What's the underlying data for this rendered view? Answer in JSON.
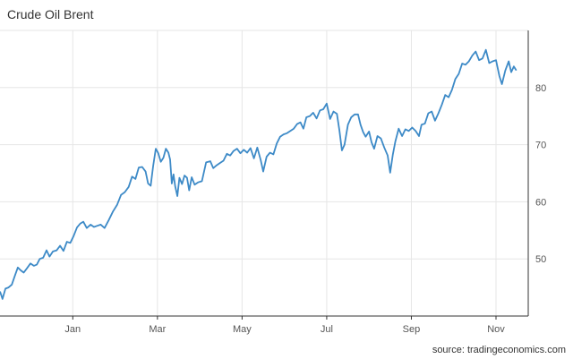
{
  "header": {
    "title": "Crude Oil Brent"
  },
  "footer": {
    "source": "source: tradingeconomics.com"
  },
  "colors": {
    "line": "#3d8ac7",
    "grid": "#e6e6e6",
    "axis": "#333333"
  },
  "chart_data": {
    "type": "line",
    "title": "Crude Oil Brent",
    "xlabel": "",
    "ylabel": "",
    "grid": true,
    "legend": "none",
    "x_ticks": [
      {
        "label": "Jan",
        "x": 2.0
      },
      {
        "label": "Mar",
        "x": 4.0
      },
      {
        "label": "May",
        "x": 6.0
      },
      {
        "label": "Jul",
        "x": 8.0
      },
      {
        "label": "Sep",
        "x": 10.0
      },
      {
        "label": "Nov",
        "x": 12.0
      }
    ],
    "y_ticks": [
      50,
      60,
      70,
      80
    ],
    "xlim": [
      0.28,
      12.55
    ],
    "ylim": [
      40,
      90
    ],
    "series": [
      {
        "points": [
          [
            0.28,
            44.3
          ],
          [
            0.34,
            43.0
          ],
          [
            0.41,
            44.8
          ],
          [
            0.48,
            45.0
          ],
          [
            0.56,
            45.5
          ],
          [
            0.63,
            47.0
          ],
          [
            0.7,
            48.5
          ],
          [
            0.77,
            48.0
          ],
          [
            0.84,
            47.6
          ],
          [
            0.92,
            48.4
          ],
          [
            1.0,
            49.2
          ],
          [
            1.08,
            48.8
          ],
          [
            1.15,
            49.0
          ],
          [
            1.22,
            50.0
          ],
          [
            1.3,
            50.2
          ],
          [
            1.38,
            51.5
          ],
          [
            1.45,
            50.4
          ],
          [
            1.53,
            51.3
          ],
          [
            1.62,
            51.5
          ],
          [
            1.7,
            52.3
          ],
          [
            1.78,
            51.4
          ],
          [
            1.86,
            53.0
          ],
          [
            1.94,
            52.8
          ],
          [
            2.02,
            54.0
          ],
          [
            2.1,
            55.5
          ],
          [
            2.18,
            56.2
          ],
          [
            2.25,
            56.5
          ],
          [
            2.33,
            55.4
          ],
          [
            2.42,
            56.0
          ],
          [
            2.5,
            55.6
          ],
          [
            2.58,
            55.8
          ],
          [
            2.66,
            56.0
          ],
          [
            2.75,
            55.4
          ],
          [
            2.85,
            56.8
          ],
          [
            2.95,
            58.3
          ],
          [
            3.05,
            59.5
          ],
          [
            3.14,
            61.2
          ],
          [
            3.23,
            61.7
          ],
          [
            3.32,
            62.6
          ],
          [
            3.4,
            64.4
          ],
          [
            3.48,
            64.0
          ],
          [
            3.56,
            66.0
          ],
          [
            3.64,
            66.1
          ],
          [
            3.72,
            65.3
          ],
          [
            3.78,
            63.2
          ],
          [
            3.84,
            62.8
          ],
          [
            3.9,
            66.3
          ],
          [
            3.96,
            69.3
          ],
          [
            4.02,
            68.5
          ],
          [
            4.08,
            67.0
          ],
          [
            4.14,
            67.7
          ],
          [
            4.2,
            69.3
          ],
          [
            4.26,
            68.6
          ],
          [
            4.3,
            67.4
          ],
          [
            4.34,
            63.2
          ],
          [
            4.38,
            64.8
          ],
          [
            4.42,
            62.7
          ],
          [
            4.47,
            61.0
          ],
          [
            4.52,
            64.2
          ],
          [
            4.58,
            63.1
          ],
          [
            4.64,
            64.6
          ],
          [
            4.7,
            64.2
          ],
          [
            4.75,
            62.0
          ],
          [
            4.81,
            64.3
          ],
          [
            4.88,
            63.0
          ],
          [
            4.96,
            63.4
          ],
          [
            5.05,
            63.6
          ],
          [
            5.15,
            66.9
          ],
          [
            5.25,
            67.1
          ],
          [
            5.32,
            65.9
          ],
          [
            5.4,
            66.4
          ],
          [
            5.48,
            66.8
          ],
          [
            5.56,
            67.2
          ],
          [
            5.64,
            68.4
          ],
          [
            5.72,
            68.1
          ],
          [
            5.8,
            68.9
          ],
          [
            5.88,
            69.3
          ],
          [
            5.96,
            68.5
          ],
          [
            6.04,
            69.1
          ],
          [
            6.12,
            68.6
          ],
          [
            6.2,
            69.4
          ],
          [
            6.28,
            67.6
          ],
          [
            6.36,
            69.5
          ],
          [
            6.44,
            67.3
          ],
          [
            6.5,
            65.3
          ],
          [
            6.58,
            67.9
          ],
          [
            6.66,
            68.6
          ],
          [
            6.74,
            68.3
          ],
          [
            6.82,
            70.2
          ],
          [
            6.9,
            71.4
          ],
          [
            6.98,
            71.8
          ],
          [
            7.06,
            72.0
          ],
          [
            7.14,
            72.4
          ],
          [
            7.22,
            72.8
          ],
          [
            7.3,
            73.6
          ],
          [
            7.38,
            73.9
          ],
          [
            7.45,
            72.8
          ],
          [
            7.52,
            74.8
          ],
          [
            7.6,
            75.0
          ],
          [
            7.68,
            75.6
          ],
          [
            7.76,
            74.6
          ],
          [
            7.84,
            76.0
          ],
          [
            7.92,
            76.2
          ],
          [
            8.0,
            77.2
          ],
          [
            8.08,
            74.5
          ],
          [
            8.16,
            75.8
          ],
          [
            8.24,
            75.4
          ],
          [
            8.3,
            72.5
          ],
          [
            8.36,
            69.0
          ],
          [
            8.42,
            70.0
          ],
          [
            8.5,
            73.5
          ],
          [
            8.58,
            74.8
          ],
          [
            8.66,
            75.3
          ],
          [
            8.74,
            75.3
          ],
          [
            8.8,
            73.5
          ],
          [
            8.86,
            72.2
          ],
          [
            8.92,
            71.4
          ],
          [
            9.0,
            72.3
          ],
          [
            9.06,
            70.4
          ],
          [
            9.12,
            69.3
          ],
          [
            9.2,
            71.5
          ],
          [
            9.28,
            71.1
          ],
          [
            9.36,
            69.5
          ],
          [
            9.44,
            68.1
          ],
          [
            9.5,
            65.1
          ],
          [
            9.56,
            68.2
          ],
          [
            9.62,
            70.5
          ],
          [
            9.7,
            72.8
          ],
          [
            9.78,
            71.5
          ],
          [
            9.86,
            72.7
          ],
          [
            9.94,
            72.4
          ],
          [
            10.02,
            73.0
          ],
          [
            10.1,
            72.4
          ],
          [
            10.18,
            71.5
          ],
          [
            10.24,
            73.5
          ],
          [
            10.32,
            73.7
          ],
          [
            10.4,
            75.5
          ],
          [
            10.48,
            75.8
          ],
          [
            10.56,
            74.2
          ],
          [
            10.64,
            75.5
          ],
          [
            10.72,
            77.0
          ],
          [
            10.8,
            78.7
          ],
          [
            10.88,
            78.3
          ],
          [
            10.96,
            79.6
          ],
          [
            11.04,
            81.5
          ],
          [
            11.12,
            82.4
          ],
          [
            11.2,
            84.2
          ],
          [
            11.28,
            84.0
          ],
          [
            11.36,
            84.6
          ],
          [
            11.44,
            85.6
          ],
          [
            11.52,
            86.3
          ],
          [
            11.6,
            84.8
          ],
          [
            11.68,
            85.1
          ],
          [
            11.76,
            86.6
          ],
          [
            11.84,
            84.3
          ],
          [
            11.92,
            84.6
          ],
          [
            12.0,
            84.8
          ],
          [
            12.08,
            82.0
          ],
          [
            12.14,
            80.6
          ],
          [
            12.22,
            83.0
          ],
          [
            12.3,
            84.6
          ],
          [
            12.36,
            82.7
          ],
          [
            12.42,
            83.7
          ],
          [
            12.48,
            83.0
          ]
        ]
      }
    ]
  }
}
